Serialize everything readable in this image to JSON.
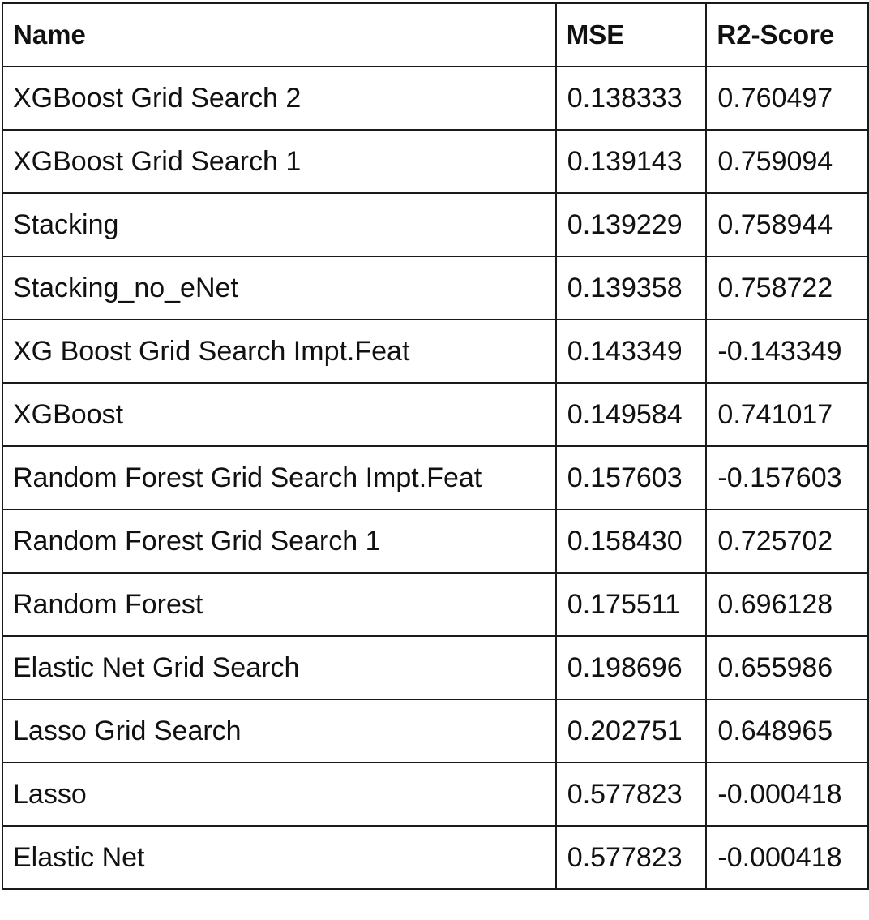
{
  "table": {
    "headers": [
      "Name",
      "MSE",
      "R2-Score"
    ],
    "rows": [
      [
        "XGBoost Grid Search 2",
        "0.138333",
        "0.760497"
      ],
      [
        "XGBoost Grid Search 1",
        "0.139143",
        "0.759094"
      ],
      [
        "Stacking",
        "0.139229",
        "0.758944"
      ],
      [
        "Stacking_no_eNet",
        "0.139358",
        "0.758722"
      ],
      [
        "XG Boost Grid Search Impt.Feat",
        "0.143349",
        "-0.143349"
      ],
      [
        "XGBoost",
        "0.149584",
        "0.741017"
      ],
      [
        "Random Forest Grid Search Impt.Feat",
        "0.157603",
        "-0.157603"
      ],
      [
        "Random Forest Grid Search 1",
        "0.158430",
        "0.725702"
      ],
      [
        "Random Forest",
        "0.175511",
        "0.696128"
      ],
      [
        "Elastic Net Grid Search",
        "0.198696",
        "0.655986"
      ],
      [
        "Lasso Grid Search",
        "0.202751",
        "0.648965"
      ],
      [
        "Lasso",
        "0.577823",
        "-0.000418"
      ],
      [
        "Elastic Net",
        "0.577823",
        "-0.000418"
      ]
    ]
  }
}
